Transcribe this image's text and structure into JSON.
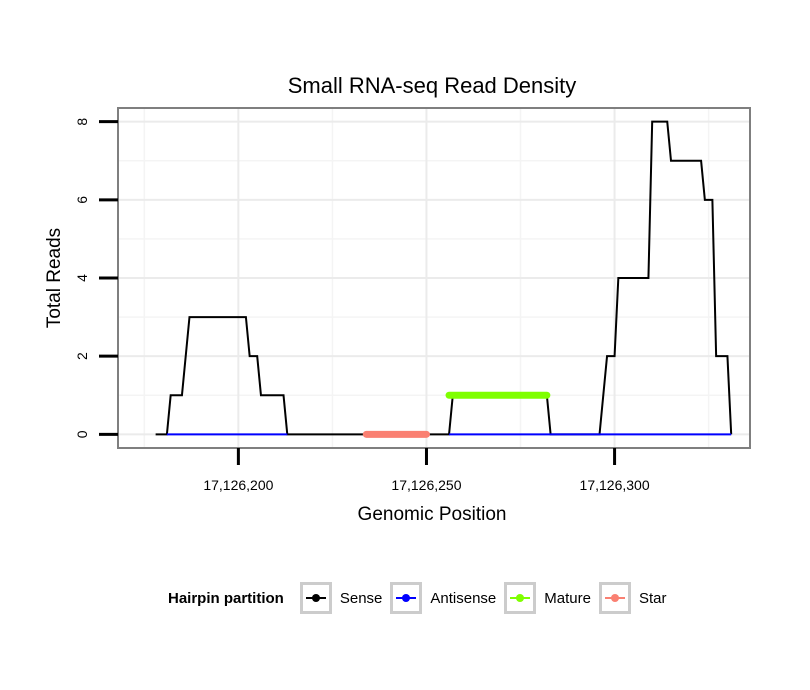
{
  "chart_data": {
    "type": "line",
    "title": "Small RNA-seq Read Density",
    "xlabel": "Genomic Position",
    "ylabel": "Total Reads",
    "xlim": [
      17126168,
      17126336
    ],
    "ylim": [
      -0.35,
      8.35
    ],
    "x_ticks": [
      17126200,
      17126250,
      17126300
    ],
    "x_tick_labels": [
      "17,126,200",
      "17,126,250",
      "17,126,300"
    ],
    "y_ticks": [
      0,
      2,
      4,
      6,
      8
    ],
    "y_tick_labels": [
      "0",
      "2",
      "4",
      "6",
      "8"
    ],
    "grid": true,
    "legend": {
      "title": "Hairpin partition",
      "placement": "bottom",
      "entries": [
        "Sense",
        "Antisense",
        "Mature",
        "Star"
      ]
    },
    "series": [
      {
        "name": "Sense",
        "color": "#000000",
        "points": [
          [
            17126178,
            0
          ],
          [
            17126181,
            0
          ],
          [
            17126182,
            1
          ],
          [
            17126185,
            1
          ],
          [
            17126187,
            3
          ],
          [
            17126193,
            3
          ],
          [
            17126202,
            3
          ],
          [
            17126203,
            2
          ],
          [
            17126205,
            2
          ],
          [
            17126206,
            1
          ],
          [
            17126212,
            1
          ],
          [
            17126213,
            0
          ],
          [
            17126256,
            0
          ],
          [
            17126257,
            1
          ],
          [
            17126282,
            1
          ],
          [
            17126283,
            0
          ],
          [
            17126296,
            0
          ],
          [
            17126298,
            2
          ],
          [
            17126300,
            2
          ],
          [
            17126301,
            4
          ],
          [
            17126309,
            4
          ],
          [
            17126310,
            8
          ],
          [
            17126314,
            8
          ],
          [
            17126315,
            7
          ],
          [
            17126323,
            7
          ],
          [
            17126324,
            6
          ],
          [
            17126326,
            6
          ],
          [
            17126327,
            2
          ],
          [
            17126330,
            2
          ],
          [
            17126331,
            0
          ]
        ]
      },
      {
        "name": "Antisense",
        "color": "#0000ff",
        "segments": [
          [
            [
              17126181,
              0
            ],
            [
              17126213,
              0
            ]
          ],
          [
            [
              17126256,
              0
            ],
            [
              17126331,
              0
            ]
          ]
        ]
      },
      {
        "name": "Mature",
        "color": "#7fff00",
        "points": [
          [
            17126256,
            1
          ],
          [
            17126282,
            1
          ]
        ]
      },
      {
        "name": "Star",
        "color": "#fa8072",
        "points": [
          [
            17126234,
            0
          ],
          [
            17126250,
            0
          ]
        ]
      }
    ]
  }
}
